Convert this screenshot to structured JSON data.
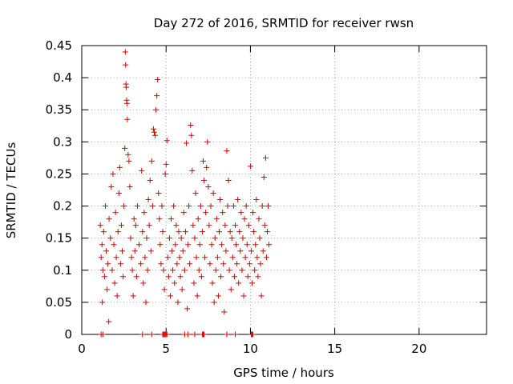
{
  "chart_data": {
    "type": "scatter",
    "title": "Day 272 of 2016, SRMTID for receiver rwsn",
    "xlabel": "GPS time / hours",
    "ylabel": "SRMTID / TECUs",
    "xlim": [
      0,
      24
    ],
    "ylim": [
      0,
      0.45
    ],
    "xticks": [
      0,
      5,
      10,
      15,
      20
    ],
    "xtick_labels": [
      "0",
      "5",
      "10",
      "15",
      "20"
    ],
    "yticks": [
      0,
      0.05,
      0.1,
      0.15,
      0.2,
      0.25,
      0.3,
      0.35,
      0.4,
      0.45
    ],
    "ytick_labels": [
      "0",
      "0.05",
      "0.1",
      "0.15",
      "0.2",
      "0.25",
      "0.3",
      "0.35",
      "0.4",
      "0.45"
    ],
    "grid": true,
    "marker": "plus",
    "color": "#e00000",
    "series": [
      {
        "points": [
          [
            1.1,
            0.17
          ],
          [
            1.15,
            0.12
          ],
          [
            1.2,
            0.14
          ],
          [
            1.22,
            0.05
          ],
          [
            1.25,
            0.1
          ],
          [
            1.3,
            0.16
          ],
          [
            1.35,
            0.09
          ],
          [
            1.4,
            0.2
          ],
          [
            1.45,
            0.13
          ],
          [
            1.5,
            0.07
          ],
          [
            1.55,
            0.11
          ],
          [
            1.6,
            0.02
          ],
          [
            1.62,
            0.18
          ],
          [
            1.7,
            0.15
          ],
          [
            1.75,
            0.23
          ],
          [
            1.8,
            0.1
          ],
          [
            1.85,
            0.25
          ],
          [
            1.9,
            0.14
          ],
          [
            1.95,
            0.08
          ],
          [
            2.0,
            0.19
          ],
          [
            2.05,
            0.12
          ],
          [
            2.1,
            0.06
          ],
          [
            2.15,
            0.16
          ],
          [
            2.2,
            0.22
          ],
          [
            2.25,
            0.26
          ],
          [
            2.3,
            0.11
          ],
          [
            2.35,
            0.17
          ],
          [
            2.4,
            0.13
          ],
          [
            2.45,
            0.09
          ],
          [
            2.5,
            0.2
          ],
          [
            2.55,
            0.29
          ],
          [
            2.58,
            0.44
          ],
          [
            2.6,
            0.42
          ],
          [
            2.62,
            0.39
          ],
          [
            2.64,
            0.385
          ],
          [
            2.66,
            0.365
          ],
          [
            2.68,
            0.36
          ],
          [
            2.7,
            0.335
          ],
          [
            2.75,
            0.28
          ],
          [
            2.8,
            0.27
          ],
          [
            2.85,
            0.23
          ],
          [
            2.9,
            0.15
          ],
          [
            2.95,
            0.12
          ],
          [
            3.0,
            0.1
          ],
          [
            3.05,
            0.06
          ],
          [
            3.1,
            0.18
          ],
          [
            3.15,
            0.13
          ],
          [
            3.2,
            0.17
          ],
          [
            3.25,
            0.09
          ],
          [
            3.3,
            0.2
          ],
          [
            3.4,
            0.14
          ],
          [
            3.5,
            0.11
          ],
          [
            3.55,
            0.255
          ],
          [
            3.6,
            0.16
          ],
          [
            3.65,
            0.08
          ],
          [
            3.7,
            0.19
          ],
          [
            3.75,
            0.12
          ],
          [
            3.8,
            0.05
          ],
          [
            3.85,
            0.15
          ],
          [
            3.9,
            0.1
          ],
          [
            3.95,
            0.21
          ],
          [
            4.0,
            0.17
          ],
          [
            4.05,
            0.24
          ],
          [
            4.1,
            0.13
          ],
          [
            4.15,
            0.27
          ],
          [
            4.2,
            0.2
          ],
          [
            4.25,
            0.32
          ],
          [
            4.3,
            0.315
          ],
          [
            4.35,
            0.31
          ],
          [
            4.4,
            0.35
          ],
          [
            4.45,
            0.372
          ],
          [
            4.5,
            0.397
          ],
          [
            4.55,
            0.22
          ],
          [
            4.6,
            0.18
          ],
          [
            4.65,
            0.14
          ],
          [
            4.7,
            0.11
          ],
          [
            4.75,
            0.2
          ],
          [
            4.8,
            0.16
          ],
          [
            4.85,
            0.1
          ],
          [
            4.9,
            0.07
          ],
          [
            4.95,
            0.25
          ],
          [
            5.0,
            0.265
          ],
          [
            5.05,
            0.302
          ],
          [
            5.1,
            0.12
          ],
          [
            5.15,
            0.09
          ],
          [
            5.2,
            0.15
          ],
          [
            5.25,
            0.06
          ],
          [
            5.3,
            0.18
          ],
          [
            5.35,
            0.13
          ],
          [
            5.4,
            0.1
          ],
          [
            5.45,
            0.2
          ],
          [
            5.5,
            0.08
          ],
          [
            5.55,
            0.14
          ],
          [
            5.6,
            0.17
          ],
          [
            5.65,
            0.11
          ],
          [
            5.7,
            0.05
          ],
          [
            5.75,
            0.16
          ],
          [
            5.8,
            0.12
          ],
          [
            5.85,
            0.09
          ],
          [
            5.9,
            0.15
          ],
          [
            5.95,
            0.07
          ],
          [
            6.0,
            0.13
          ],
          [
            6.05,
            0.19
          ],
          [
            6.1,
            0.1
          ],
          [
            6.15,
            0.16
          ],
          [
            6.2,
            0.298
          ],
          [
            6.25,
            0.04
          ],
          [
            6.3,
            0.14
          ],
          [
            6.35,
            0.2
          ],
          [
            6.4,
            0.11
          ],
          [
            6.45,
            0.326
          ],
          [
            6.5,
            0.31
          ],
          [
            6.55,
            0.255
          ],
          [
            6.6,
            0.17
          ],
          [
            6.65,
            0.08
          ],
          [
            6.7,
            0.15
          ],
          [
            6.75,
            0.22
          ],
          [
            6.8,
            0.12
          ],
          [
            6.85,
            0.06
          ],
          [
            6.9,
            0.18
          ],
          [
            6.95,
            0.1
          ],
          [
            7.0,
            0.14
          ],
          [
            7.05,
            0.2
          ],
          [
            7.1,
            0.09
          ],
          [
            7.15,
            0.16
          ],
          [
            7.2,
            0.27
          ],
          [
            7.25,
            0.24
          ],
          [
            7.3,
            0.12
          ],
          [
            7.35,
            0.19
          ],
          [
            7.4,
            0.26
          ],
          [
            7.45,
            0.3
          ],
          [
            7.5,
            0.23
          ],
          [
            7.55,
            0.17
          ],
          [
            7.6,
            0.11
          ],
          [
            7.65,
            0.2
          ],
          [
            7.7,
            0.14
          ],
          [
            7.75,
            0.08
          ],
          [
            7.8,
            0.22
          ],
          [
            7.85,
            0.05
          ],
          [
            7.9,
            0.15
          ],
          [
            7.95,
            0.1
          ],
          [
            8.0,
            0.18
          ],
          [
            8.05,
            0.12
          ],
          [
            8.1,
            0.06
          ],
          [
            8.15,
            0.16
          ],
          [
            8.2,
            0.21
          ],
          [
            8.25,
            0.09
          ],
          [
            8.3,
            0.14
          ],
          [
            8.35,
            0.19
          ],
          [
            8.4,
            0.11
          ],
          [
            8.45,
            0.035
          ],
          [
            8.5,
            0.17
          ],
          [
            8.55,
            0.13
          ],
          [
            8.6,
            0.286
          ],
          [
            8.65,
            0.2
          ],
          [
            8.7,
            0.24
          ],
          [
            8.75,
            0.1
          ],
          [
            8.8,
            0.16
          ],
          [
            8.85,
            0.07
          ],
          [
            8.9,
            0.15
          ],
          [
            8.95,
            0.12
          ],
          [
            9.0,
            0.2
          ],
          [
            9.05,
            0.09
          ],
          [
            9.1,
            0.17
          ],
          [
            9.15,
            0.14
          ],
          [
            9.2,
            0.11
          ],
          [
            9.25,
            0.21
          ],
          [
            9.3,
            0.08
          ],
          [
            9.35,
            0.16
          ],
          [
            9.4,
            0.13
          ],
          [
            9.45,
            0.19
          ],
          [
            9.5,
            0.1
          ],
          [
            9.55,
            0.15
          ],
          [
            9.6,
            0.06
          ],
          [
            9.65,
            0.18
          ],
          [
            9.7,
            0.12
          ],
          [
            9.75,
            0.2
          ],
          [
            9.8,
            0.14
          ],
          [
            9.85,
            0.09
          ],
          [
            9.9,
            0.17
          ],
          [
            9.95,
            0.11
          ],
          [
            10.0,
            0.262
          ],
          [
            10.05,
            0.13
          ],
          [
            10.1,
            0.08
          ],
          [
            10.15,
            0.19
          ],
          [
            10.2,
            0.16
          ],
          [
            10.25,
            0.1
          ],
          [
            10.3,
            0.14
          ],
          [
            10.35,
            0.21
          ],
          [
            10.4,
            0.12
          ],
          [
            10.45,
            0.09
          ],
          [
            10.5,
            0.18
          ],
          [
            10.55,
            0.15
          ],
          [
            10.6,
            0.11
          ],
          [
            10.65,
            0.06
          ],
          [
            10.7,
            0.2
          ],
          [
            10.75,
            0.13
          ],
          [
            10.8,
            0.245
          ],
          [
            10.85,
            0.17
          ],
          [
            10.9,
            0.275
          ],
          [
            10.95,
            0.12
          ],
          [
            11.0,
            0.16
          ],
          [
            11.05,
            0.2
          ],
          [
            11.1,
            0.14
          ],
          [
            1.15,
            0.0
          ],
          [
            1.25,
            0.0
          ],
          [
            3.6,
            0.0
          ],
          [
            4.15,
            0.0
          ],
          [
            4.8,
            0.0
          ],
          [
            4.85,
            0.0
          ],
          [
            4.9,
            0.0
          ],
          [
            4.95,
            0.0
          ],
          [
            5.0,
            0.0
          ],
          [
            5.05,
            0.0
          ],
          [
            6.1,
            0.0
          ],
          [
            6.3,
            0.0
          ],
          [
            6.7,
            0.0
          ],
          [
            7.15,
            0.0
          ],
          [
            7.2,
            0.0
          ],
          [
            7.25,
            0.0
          ],
          [
            8.6,
            0.0
          ],
          [
            9.1,
            0.0
          ],
          [
            10.05,
            0.0
          ],
          [
            10.1,
            0.0
          ],
          [
            10.15,
            0.0
          ]
        ]
      }
    ]
  }
}
